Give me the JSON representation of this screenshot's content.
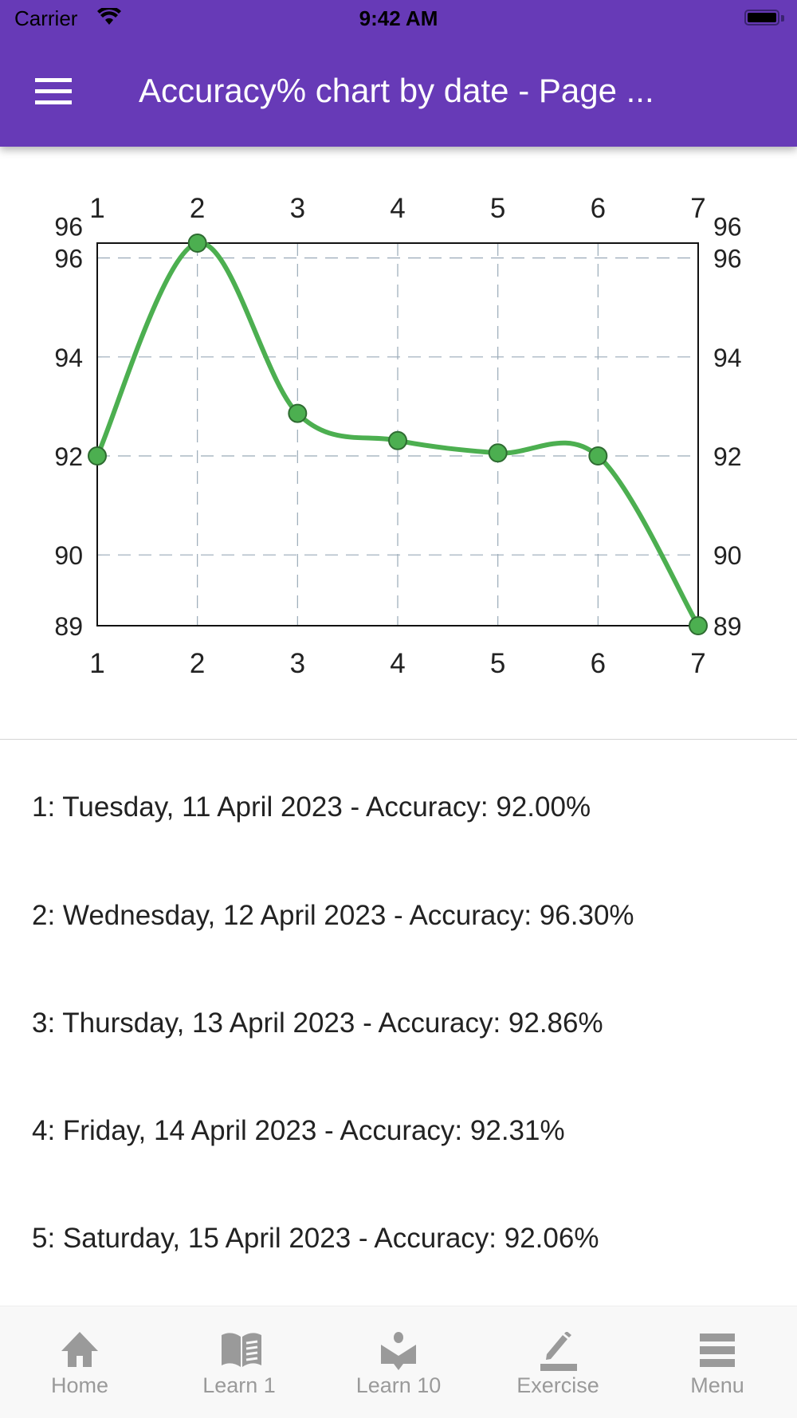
{
  "status_bar": {
    "carrier": "Carrier",
    "time": "9:42 AM"
  },
  "header": {
    "title": "Accuracy% chart by date - Page ...",
    "menu_icon": "hamburger-icon",
    "color": "#673AB7"
  },
  "chart_data": {
    "type": "line",
    "smooth": true,
    "x": [
      1,
      2,
      3,
      4,
      5,
      6,
      7
    ],
    "values": [
      92.0,
      96.3,
      92.86,
      92.31,
      92.06,
      92.0,
      88.57
    ],
    "x_tick_labels": [
      "1",
      "2",
      "3",
      "4",
      "5",
      "6",
      "7"
    ],
    "y_tick_labels": [
      "89",
      "90",
      "92",
      "94",
      "96",
      "96"
    ],
    "y_ticks": [
      88.57,
      90,
      92,
      94,
      96,
      96.3
    ],
    "ylim": [
      88.57,
      96.3
    ],
    "xlim": [
      1,
      7
    ],
    "grid": true,
    "line_color": "#4CAF50",
    "grid_color": "#9aaab8"
  },
  "list": [
    "1: Tuesday, 11 April 2023 - Accuracy: 92.00%",
    "2: Wednesday, 12 April 2023 - Accuracy: 96.30%",
    "3: Thursday, 13 April 2023 - Accuracy: 92.86%",
    "4: Friday, 14 April 2023 - Accuracy: 92.31%",
    "5: Saturday, 15 April 2023 - Accuracy: 92.06%"
  ],
  "tabs": [
    {
      "label": "Home",
      "icon": "home-icon"
    },
    {
      "label": "Learn 1",
      "icon": "book-icon"
    },
    {
      "label": "Learn 10",
      "icon": "reader-icon"
    },
    {
      "label": "Exercise",
      "icon": "pencil-icon"
    },
    {
      "label": "Menu",
      "icon": "menu-icon"
    }
  ]
}
